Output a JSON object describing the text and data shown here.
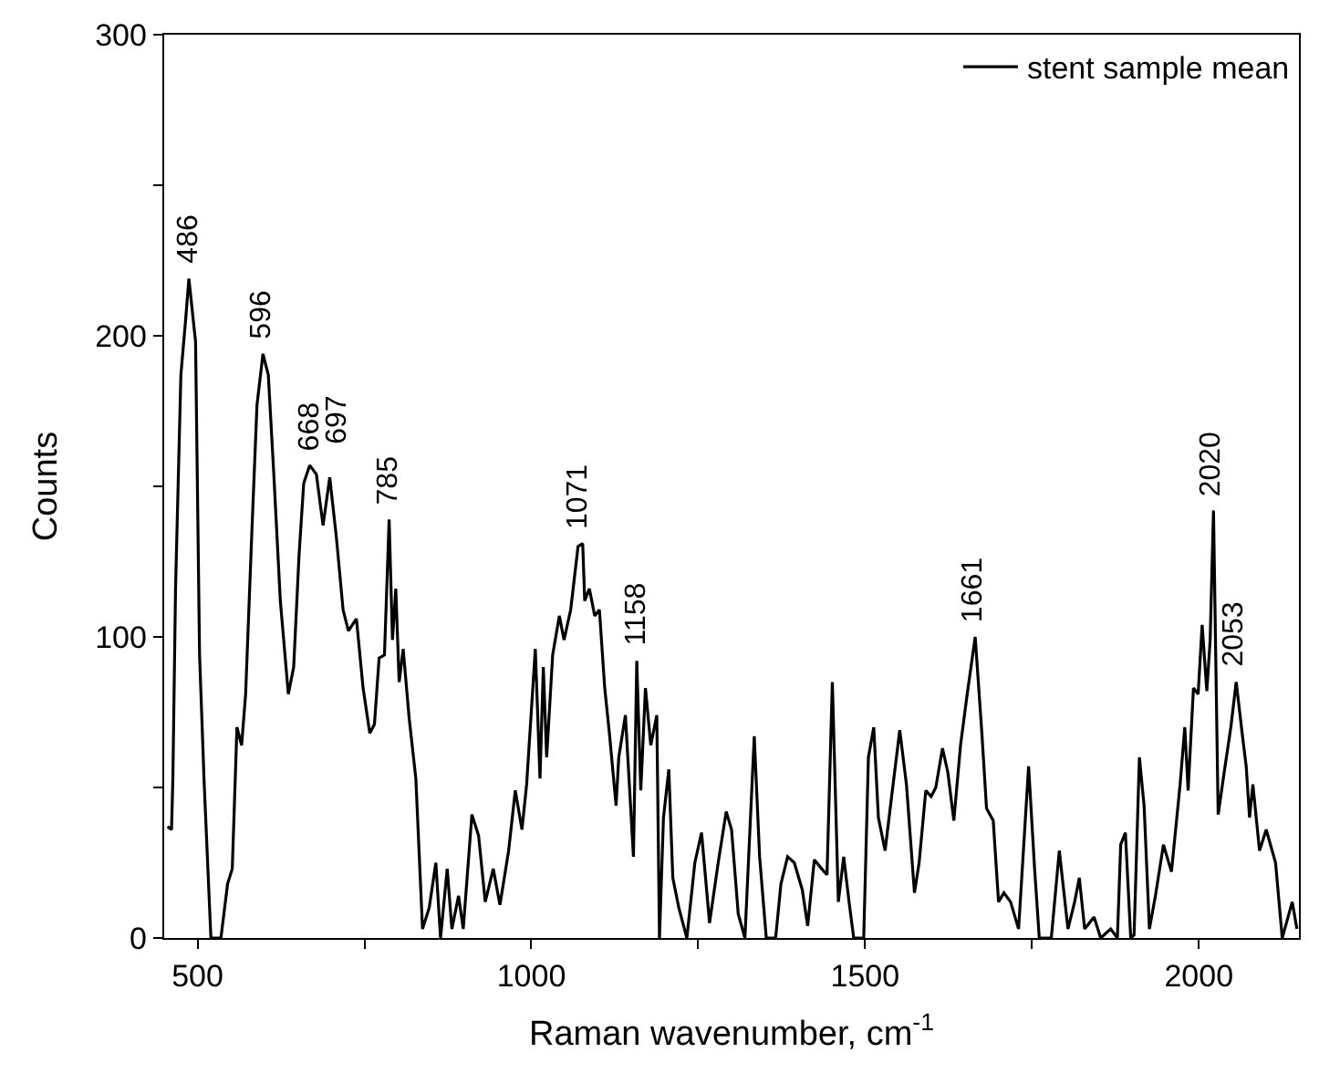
{
  "chart_data": {
    "type": "line",
    "xlabel": "Raman wavenumber, cm$^{-1}$",
    "ylabel": "Counts",
    "xlim": [
      450,
      2150
    ],
    "ylim": [
      0,
      300
    ],
    "xticks": [
      500,
      {
        "value": 750,
        "label": null
      },
      1000,
      {
        "value": 1250,
        "label": null
      },
      1500,
      {
        "value": 1750,
        "label": null
      },
      2000
    ],
    "yticks": [
      0,
      {
        "value": 50,
        "label": null
      },
      100,
      {
        "value": 150,
        "label": null
      },
      200,
      {
        "value": 250,
        "label": null
      },
      300
    ],
    "legend": "top right",
    "marker": "none",
    "line_style": "solid",
    "series": [
      {
        "name": "stent sample mean",
        "color": "#000000",
        "x": [
          455,
          461,
          463,
          467,
          475,
          482,
          487,
          497,
          503,
          510,
          520,
          535,
          545,
          552,
          559,
          566,
          572,
          581,
          589,
          598,
          606,
          614,
          624,
          636,
          644,
          652,
          659,
          668,
          678,
          688,
          698,
          708,
          718,
          726,
          738,
          748,
          758,
          765,
          772,
          780,
          787,
          792,
          797,
          802,
          808,
          817,
          827,
          837,
          847,
          857,
          864,
          874,
          881,
          891,
          898,
          911,
          921,
          931,
          943,
          953,
          966,
          976,
          986,
          993,
          1006,
          1013,
          1018,
          1023,
          1032,
          1042,
          1049,
          1059,
          1070,
          1077,
          1080,
          1087,
          1095,
          1102,
          1110,
          1117,
          1127,
          1131,
          1141,
          1153,
          1158,
          1164,
          1171,
          1179,
          1188,
          1192,
          1198,
          1206,
          1212,
          1221,
          1233,
          1245,
          1255,
          1267,
          1280,
          1292,
          1300,
          1310,
          1320,
          1334,
          1342,
          1352,
          1366,
          1374,
          1384,
          1394,
          1406,
          1414,
          1424,
          1435,
          1443,
          1451,
          1460,
          1468,
          1476,
          1483,
          1498,
          1505,
          1513,
          1520,
          1530,
          1542,
          1552,
          1562,
          1574,
          1581,
          1591,
          1599,
          1606,
          1616,
          1624,
          1633,
          1643,
          1653,
          1665,
          1675,
          1682,
          1692,
          1700,
          1708,
          1718,
          1730,
          1745,
          1754,
          1761,
          1779,
          1791,
          1804,
          1814,
          1821,
          1829,
          1843,
          1853,
          1868,
          1878,
          1883,
          1890,
          1898,
          1903,
          1911,
          1918,
          1926,
          1935,
          1947,
          1959,
          1972,
          1979,
          1984,
          1992,
          1999,
          2005,
          2012,
          2017,
          2022,
          2029,
          2038,
          2048,
          2056,
          2066,
          2071,
          2076,
          2081,
          2091,
          2101,
          2115,
          2125,
          2140,
          2147
        ],
        "values": [
          37,
          36,
          53,
          116,
          187,
          205,
          219,
          198,
          94,
          51,
          0,
          0,
          18,
          23,
          70,
          64,
          81,
          133,
          177,
          194,
          187,
          155,
          112,
          81,
          90,
          127,
          151,
          157,
          154,
          137,
          153,
          133,
          109,
          102,
          106,
          83,
          68,
          71,
          93,
          94,
          139,
          99,
          116,
          85,
          96,
          73,
          53,
          3,
          10,
          25,
          0,
          23,
          3,
          14,
          3,
          41,
          34,
          12,
          23,
          11,
          29,
          49,
          36,
          51,
          96,
          53,
          90,
          60,
          94,
          107,
          99,
          109,
          130,
          131,
          112,
          116,
          107,
          109,
          83,
          68,
          44,
          60,
          74,
          27,
          92,
          49,
          83,
          64,
          74,
          0,
          40,
          56,
          20,
          10,
          0,
          25,
          35,
          5,
          25,
          42,
          36,
          8,
          0,
          67,
          27,
          0,
          0,
          18,
          27,
          25,
          16,
          4,
          26,
          23,
          21,
          85,
          12,
          27,
          12,
          0,
          0,
          60,
          70,
          40,
          29,
          51,
          69,
          51,
          15,
          25,
          49,
          47,
          50,
          63,
          55,
          39,
          64,
          81,
          100,
          68,
          43,
          39,
          12,
          15,
          12,
          3,
          57,
          23,
          0,
          0,
          29,
          3,
          12,
          20,
          3,
          7,
          0,
          3,
          0,
          31,
          35,
          0,
          1,
          60,
          44,
          3,
          14,
          31,
          22,
          51,
          70,
          49,
          83,
          81,
          104,
          82,
          99,
          142,
          41,
          55,
          70,
          85,
          66,
          57,
          40,
          51,
          29,
          36,
          25,
          0,
          12,
          3
        ]
      }
    ],
    "annotations": [
      {
        "text": "486",
        "x": 486,
        "y": 219
      },
      {
        "text": "596",
        "x": 596,
        "y": 194
      },
      {
        "text": "668",
        "x": 668,
        "y": 157
      },
      {
        "text": "697",
        "x": 697,
        "y": 153
      },
      {
        "text": "785",
        "x": 785,
        "y": 139
      },
      {
        "text": "1071",
        "x": 1071,
        "y": 131
      },
      {
        "text": "1158",
        "x": 1158,
        "y": 92
      },
      {
        "text": "1661",
        "x": 1661,
        "y": 100
      },
      {
        "text": "2020",
        "x": 2020,
        "y": 142
      },
      {
        "text": "2053",
        "x": 2053,
        "y": 85
      }
    ]
  }
}
